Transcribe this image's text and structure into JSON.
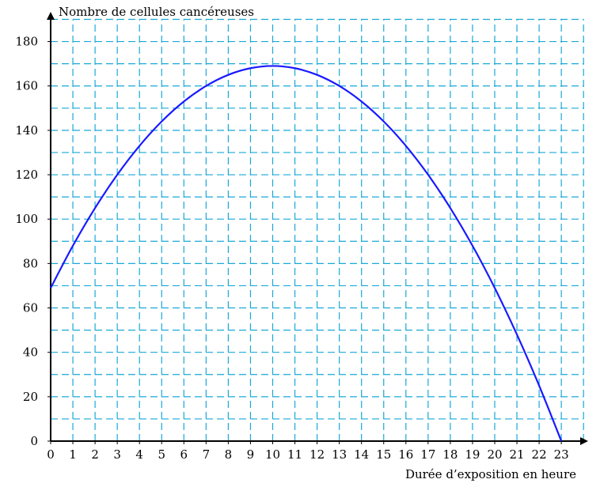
{
  "chart_data": {
    "type": "line",
    "title": "",
    "xlabel": "Durée d’exposition en heure",
    "ylabel": "Nombre de cellules cancéreuses",
    "xlim": [
      0,
      24
    ],
    "ylim": [
      0,
      190
    ],
    "x_ticks": [
      0,
      1,
      2,
      3,
      4,
      5,
      6,
      7,
      8,
      9,
      10,
      11,
      12,
      13,
      14,
      15,
      16,
      17,
      18,
      19,
      20,
      21,
      22,
      23
    ],
    "y_ticks": [
      0,
      20,
      40,
      60,
      80,
      100,
      120,
      140,
      160,
      180
    ],
    "grid": true,
    "grid_style": "dashed",
    "series": [
      {
        "x": [
          0,
          1,
          2,
          3,
          4,
          5,
          6,
          7,
          8,
          9,
          10,
          11,
          12,
          13,
          14,
          15,
          16,
          17,
          18,
          19,
          20,
          21,
          22,
          23
        ],
        "y": [
          69,
          88,
          105,
          120,
          133,
          144,
          153,
          160,
          165,
          168,
          169,
          168,
          165,
          160,
          153,
          144,
          133,
          120,
          105,
          88,
          69,
          48,
          25,
          0
        ]
      }
    ],
    "colors": {
      "curve": "#1a1aff",
      "grid": "#1aa8d8",
      "axis": "#000000"
    }
  }
}
